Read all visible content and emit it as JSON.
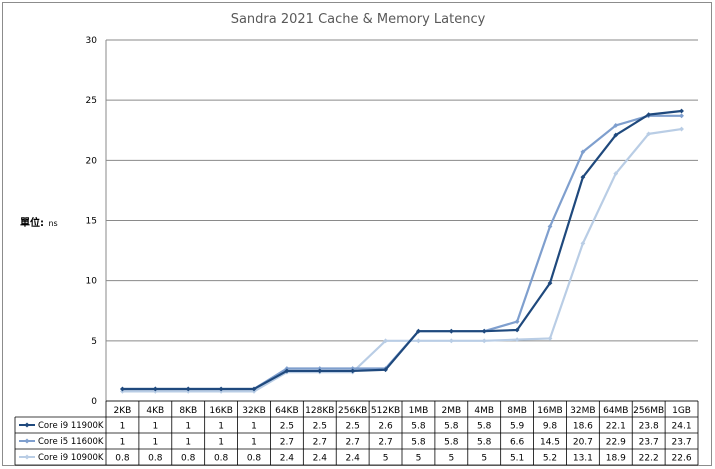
{
  "chart_data": {
    "type": "line",
    "title": "Sandra 2021 Cache & Memory Latency",
    "ylabel": "單位:",
    "yunit": "ns",
    "ylim": [
      0,
      30
    ],
    "yticks": [
      0,
      5,
      10,
      15,
      20,
      25,
      30
    ],
    "grid": true,
    "legend": "data-table",
    "categories": [
      "2KB",
      "4KB",
      "8KB",
      "16KB",
      "32KB",
      "64KB",
      "128KB",
      "256KB",
      "512KB",
      "1MB",
      "2MB",
      "4MB",
      "8MB",
      "16MB",
      "32MB",
      "64MB",
      "256MB",
      "1GB"
    ],
    "series": [
      {
        "name": "Core i9 11900K",
        "color": "#1f497d",
        "values": [
          1,
          1,
          1,
          1,
          1,
          2.5,
          2.5,
          2.5,
          2.6,
          5.8,
          5.8,
          5.8,
          5.9,
          9.8,
          18.6,
          22.1,
          23.8,
          24.1
        ]
      },
      {
        "name": "Core i5 11600K",
        "color": "#7f9fce",
        "values": [
          1,
          1,
          1,
          1,
          1,
          2.7,
          2.7,
          2.7,
          2.7,
          5.8,
          5.8,
          5.8,
          6.6,
          14.5,
          20.7,
          22.9,
          23.7,
          23.7
        ]
      },
      {
        "name": "Core i9 10900K",
        "color": "#b9cde5",
        "values": [
          0.8,
          0.8,
          0.8,
          0.8,
          0.8,
          2.4,
          2.4,
          2.4,
          5,
          5,
          5,
          5,
          5.1,
          5.2,
          13.1,
          18.9,
          22.2,
          22.6
        ]
      }
    ]
  }
}
